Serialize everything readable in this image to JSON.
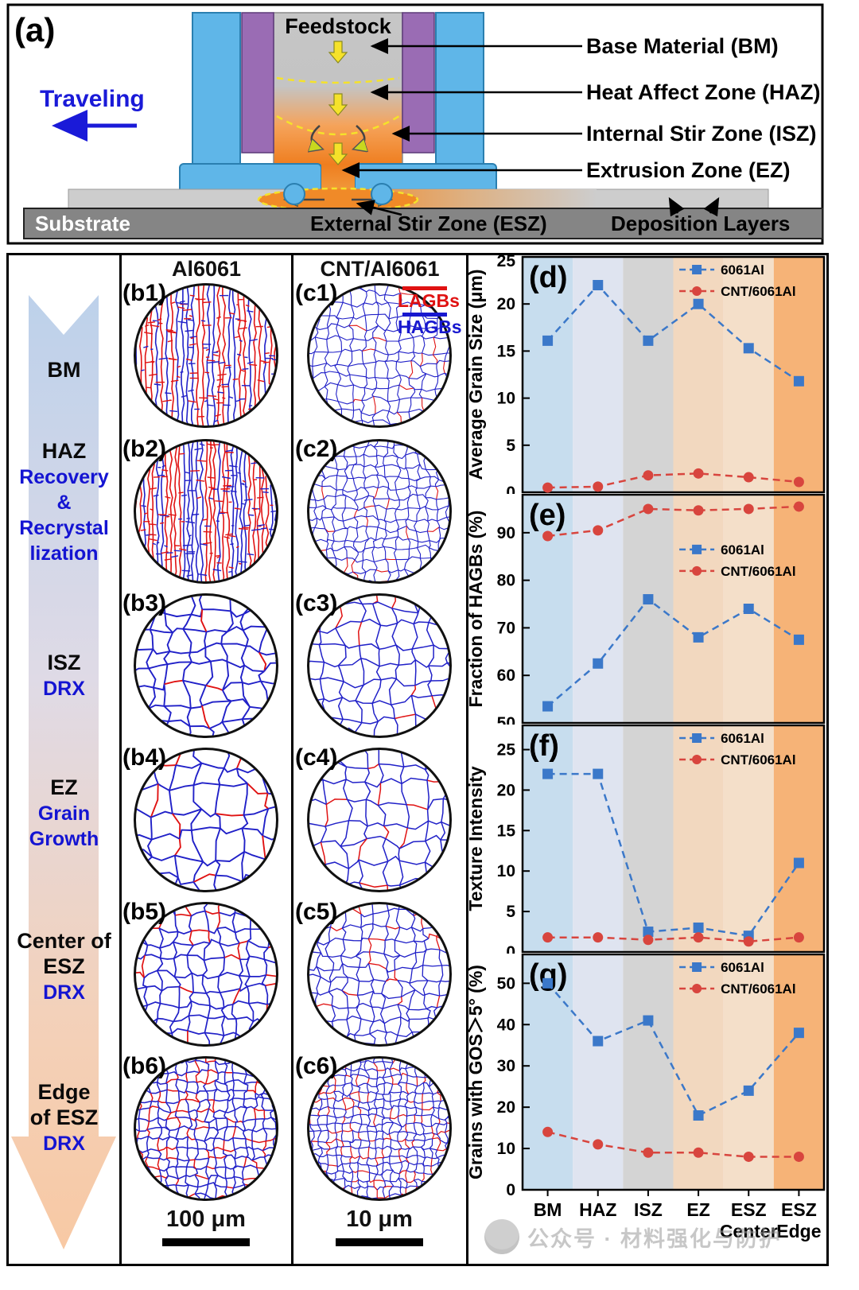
{
  "panel_a": {
    "label": "(a)",
    "traveling": "Traveling",
    "feedstock": "Feedstock",
    "substrate": "Substrate",
    "esz": "External Stir Zone (ESZ)",
    "deposition": "Deposition Layers",
    "callouts": [
      "Base Material (BM)",
      "Heat Affect Zone (HAZ)",
      "Internal Stir Zone (ISZ)",
      "Extrusion Zone (EZ)"
    ]
  },
  "process_flow": {
    "steps": [
      {
        "zone": "BM",
        "sub": ""
      },
      {
        "zone": "HAZ",
        "sub": "Recovery\n&\nRecrystal\nlization"
      },
      {
        "zone": "ISZ",
        "sub": "DRX"
      },
      {
        "zone": "EZ",
        "sub": "Grain\nGrowth"
      },
      {
        "zone": "Center of\nESZ",
        "sub": "DRX"
      },
      {
        "zone": "Edge\nof ESZ",
        "sub": "DRX"
      }
    ]
  },
  "micrographs": {
    "col1": "Al6061",
    "col2": "CNT/Al6061",
    "legend": {
      "lagbs": "LAGBs",
      "hagbs": "HAGBs",
      "lagb_color": "#e01212",
      "hagb_color": "#1818cf"
    },
    "panels_b": [
      "(b1)",
      "(b2)",
      "(b3)",
      "(b4)",
      "(b5)",
      "(b6)"
    ],
    "panels_c": [
      "(c1)",
      "(c2)",
      "(c3)",
      "(c4)",
      "(c5)",
      "(c6)"
    ],
    "scale_b": "100 μm",
    "scale_c": "10 μm"
  },
  "watermark": "公众号 · 材料强化与防护",
  "band_colors": [
    "#c7ddee",
    "#dfe4f0",
    "#d4d4d4",
    "#f2d8bf",
    "#f4dfc9",
    "#f6b377"
  ],
  "chart_data": [
    {
      "id": "d",
      "type": "line",
      "panel_label": "(d)",
      "ylabel": "Average Grain Size (μm)",
      "ylim": [
        0,
        25
      ],
      "yticks": [
        0,
        5,
        10,
        15,
        20,
        25
      ],
      "categories": [
        "BM",
        "HAZ",
        "ISZ",
        "EZ",
        "ESZ Center",
        "ESZ Edge"
      ],
      "legend_pos": "top-right",
      "show_x_labels": false,
      "series": [
        {
          "name": "6061Al",
          "color": "#3b78c9",
          "marker": "square",
          "values": [
            16.1,
            22.0,
            16.1,
            20.0,
            15.3,
            11.8
          ]
        },
        {
          "name": "CNT/6061Al",
          "color": "#d8453e",
          "marker": "circle",
          "values": [
            0.5,
            0.6,
            1.8,
            2.0,
            1.6,
            1.1
          ]
        }
      ]
    },
    {
      "id": "e",
      "type": "line",
      "panel_label": "(e)",
      "ylabel": "Fraction of HAGBs (%)",
      "ylim": [
        50,
        98
      ],
      "yticks": [
        50,
        60,
        70,
        80,
        90
      ],
      "categories": [
        "BM",
        "HAZ",
        "ISZ",
        "EZ",
        "ESZ Center",
        "ESZ Edge"
      ],
      "legend_pos": "mid-right",
      "show_x_labels": false,
      "series": [
        {
          "name": "6061Al",
          "color": "#3b78c9",
          "marker": "square",
          "values": [
            53.5,
            62.5,
            76.0,
            68.0,
            74.0,
            67.5
          ]
        },
        {
          "name": "CNT/6061Al",
          "color": "#d8453e",
          "marker": "circle",
          "values": [
            89.3,
            90.5,
            95.0,
            94.7,
            95.0,
            95.5
          ]
        }
      ]
    },
    {
      "id": "f",
      "type": "line",
      "panel_label": "(f)",
      "ylabel": "Texture Intensity",
      "ylim": [
        0,
        28
      ],
      "yticks": [
        0,
        5,
        10,
        15,
        20,
        25
      ],
      "categories": [
        "BM",
        "HAZ",
        "ISZ",
        "EZ",
        "ESZ Center",
        "ESZ Edge"
      ],
      "legend_pos": "top-right",
      "show_x_labels": false,
      "series": [
        {
          "name": "6061Al",
          "color": "#3b78c9",
          "marker": "square",
          "values": [
            22.0,
            22.0,
            2.5,
            3.0,
            2.0,
            11.0
          ]
        },
        {
          "name": "CNT/6061Al",
          "color": "#d8453e",
          "marker": "circle",
          "values": [
            1.8,
            1.8,
            1.5,
            1.8,
            1.3,
            1.8
          ]
        }
      ]
    },
    {
      "id": "g",
      "type": "line",
      "panel_label": "(g)",
      "ylabel": "Grains with GOS＞5° (%)",
      "ylim": [
        0,
        57
      ],
      "yticks": [
        0,
        10,
        20,
        30,
        40,
        50
      ],
      "categories": [
        "BM",
        "HAZ",
        "ISZ",
        "EZ",
        "ESZ Center",
        "ESZ Edge"
      ],
      "legend_pos": "top-right",
      "show_x_labels": true,
      "x_labels": [
        [
          "BM"
        ],
        [
          "HAZ"
        ],
        [
          "ISZ"
        ],
        [
          "EZ"
        ],
        [
          "ESZ",
          "Center"
        ],
        [
          "ESZ",
          "Edge"
        ]
      ],
      "series": [
        {
          "name": "6061Al",
          "color": "#3b78c9",
          "marker": "square",
          "values": [
            50.0,
            36.0,
            41.0,
            18.0,
            24.0,
            38.0
          ]
        },
        {
          "name": "CNT/6061Al",
          "color": "#d8453e",
          "marker": "circle",
          "values": [
            14.0,
            11.0,
            9.0,
            9.0,
            8.0,
            8.0
          ]
        }
      ]
    }
  ]
}
